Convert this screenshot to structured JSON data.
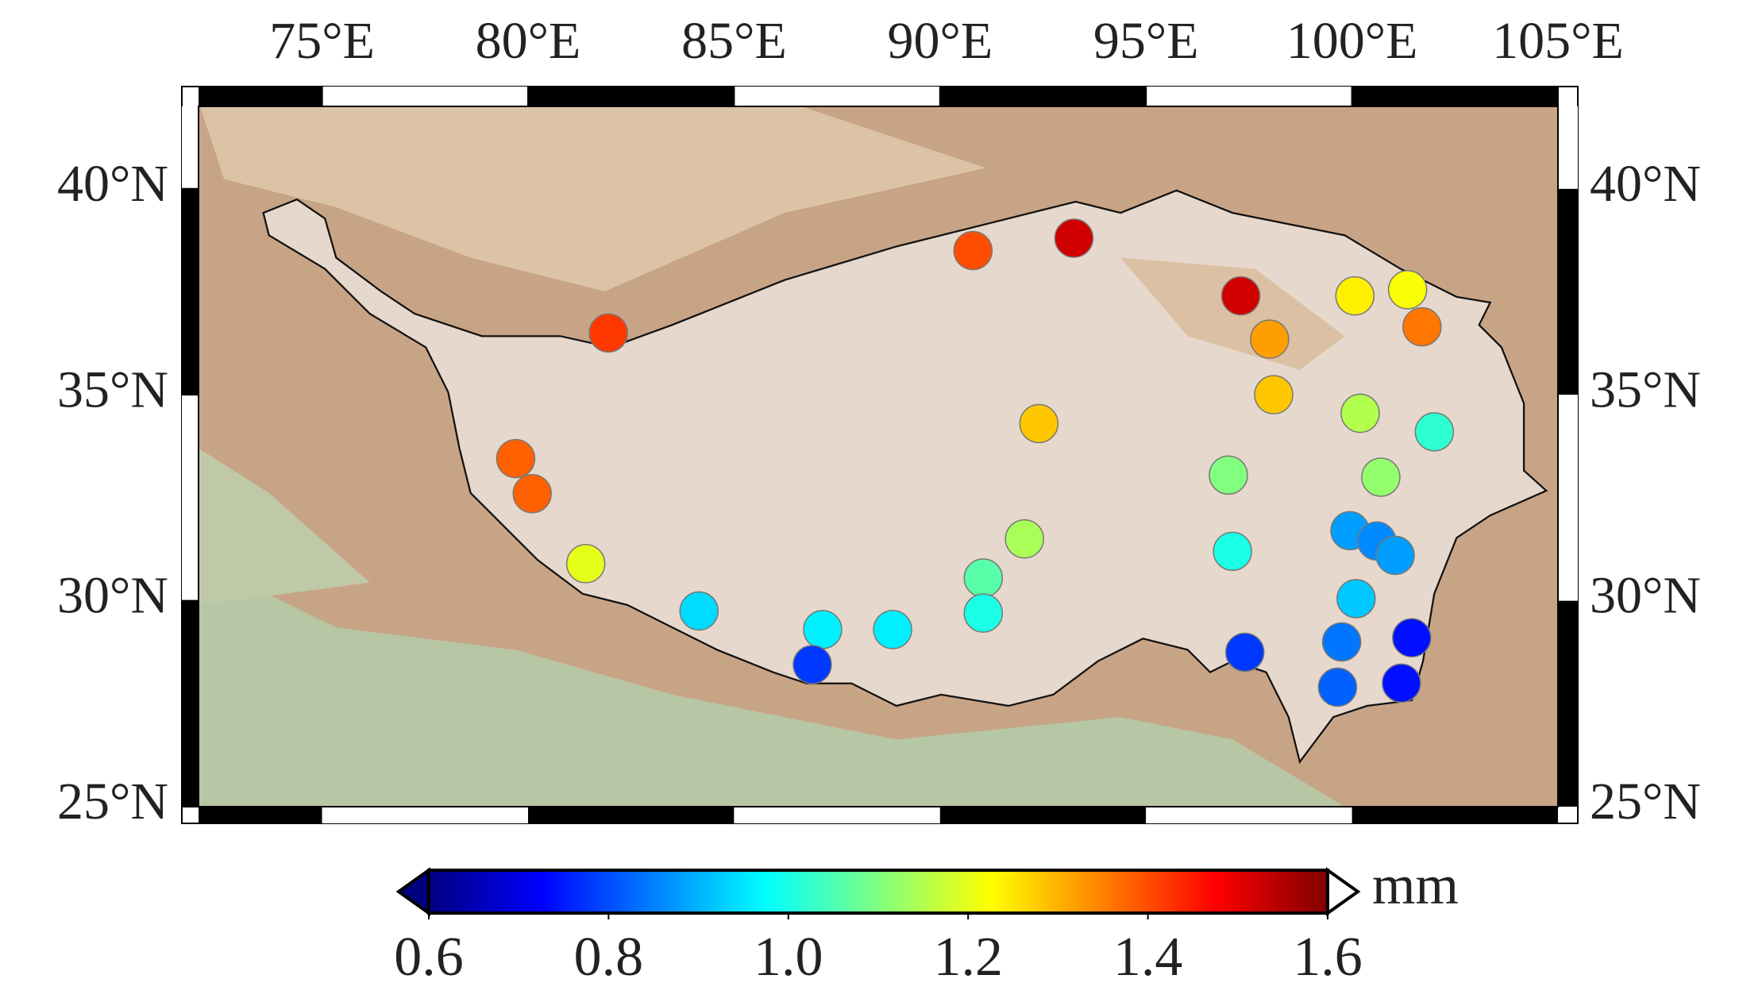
{
  "chart_data": {
    "type": "map",
    "x": [
      81.95,
      90.8,
      93.25,
      97.3,
      100.07,
      101.35,
      101.7,
      98.0,
      98.1,
      92.4,
      100.2,
      102.0,
      79.7,
      80.1,
      97.0,
      100.7,
      92.05,
      81.4,
      97.1,
      99.95,
      100.6,
      101.05,
      91.05,
      91.05,
      84.15,
      87.15,
      88.85,
      100.1,
      86.9,
      97.4,
      99.75,
      101.45,
      99.65,
      101.2
    ],
    "y": [
      36.5,
      38.5,
      38.8,
      37.4,
      37.4,
      37.55,
      36.65,
      36.35,
      35.0,
      34.3,
      34.55,
      34.1,
      33.45,
      32.6,
      33.05,
      33.0,
      31.5,
      30.9,
      31.2,
      31.7,
      31.45,
      31.1,
      30.55,
      29.7,
      29.75,
      29.3,
      29.3,
      30.05,
      28.45,
      28.75,
      29.0,
      29.1,
      27.9,
      28.0
    ],
    "values": [
      1.42,
      1.4,
      1.52,
      1.52,
      1.24,
      1.22,
      1.36,
      1.32,
      1.28,
      1.28,
      1.15,
      1.02,
      1.38,
      1.38,
      1.1,
      1.12,
      1.14,
      1.2,
      1.0,
      0.88,
      0.86,
      0.88,
      1.06,
      1.0,
      0.94,
      0.96,
      0.96,
      0.92,
      0.78,
      0.78,
      0.84,
      0.74,
      0.82,
      0.74
    ],
    "xlim": [
      72,
      105
    ],
    "ylim": [
      25,
      42
    ],
    "xticks": [
      {
        "value": 75,
        "label": "75°E"
      },
      {
        "value": 80,
        "label": "80°E"
      },
      {
        "value": 85,
        "label": "85°E"
      },
      {
        "value": 90,
        "label": "90°E"
      },
      {
        "value": 95,
        "label": "95°E"
      },
      {
        "value": 100,
        "label": "100°E"
      },
      {
        "value": 105,
        "label": "105°E"
      }
    ],
    "yticks": [
      {
        "value": 25,
        "label": "25°N"
      },
      {
        "value": 30,
        "label": "30°N"
      },
      {
        "value": 35,
        "label": "35°N"
      },
      {
        "value": 40,
        "label": "40°N"
      }
    ],
    "colorbar": {
      "clim": [
        0.6,
        1.6
      ],
      "ticks": [
        0.6,
        0.8,
        {
          "value": 1,
          "label": "1.0"
        },
        1.2,
        1.4,
        1.6
      ],
      "label": "mm",
      "colormap": [
        "#00007f",
        "#0000ff",
        "#0080ff",
        "#00ffff",
        "#80ff80",
        "#ffff00",
        "#ff8000",
        "#ff0000",
        "#7f0000"
      ]
    }
  }
}
